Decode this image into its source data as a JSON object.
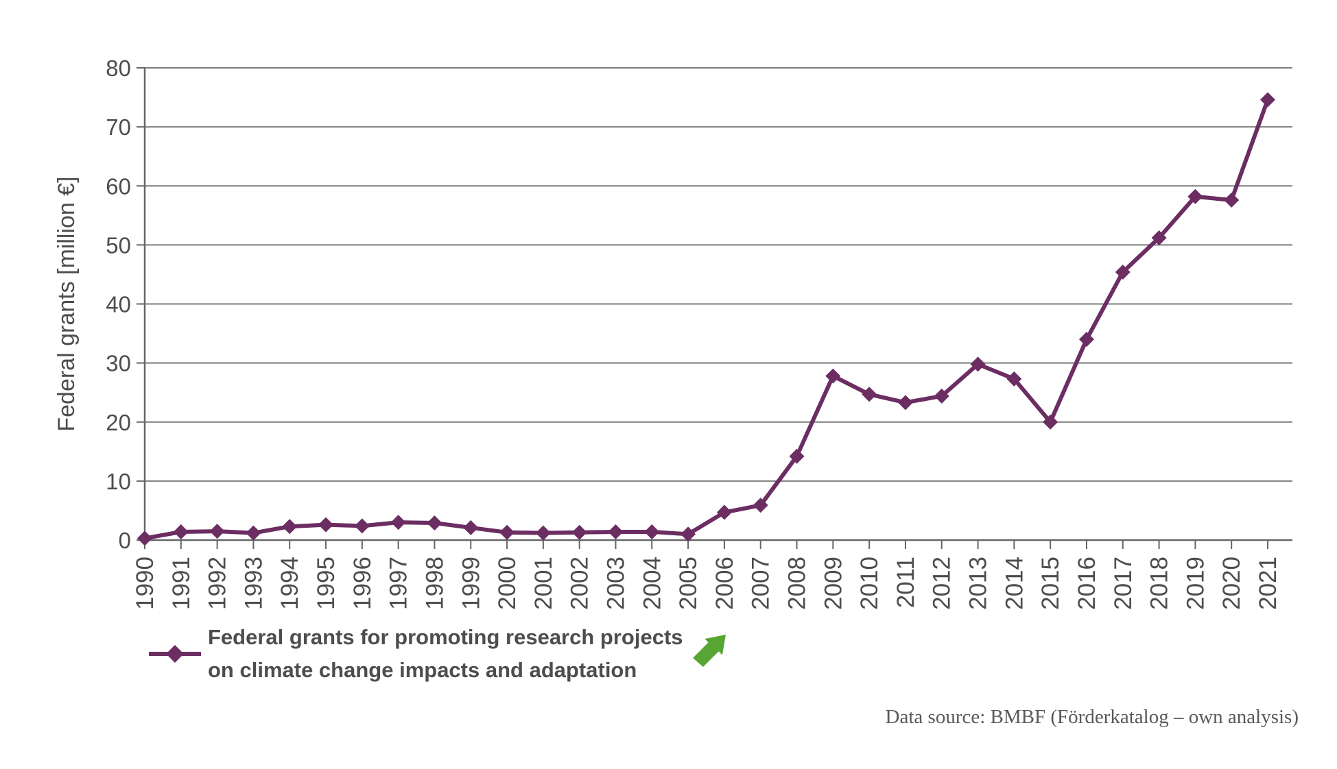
{
  "colors": {
    "series_purple": "#6B2D62",
    "grid_line": "#7c7c7c",
    "axis_line": "#666666",
    "axis_label": "#4d4d4d",
    "arrow_green": "#57A532",
    "source_text": "#595959"
  },
  "legend": {
    "line1": "Federal grants for promoting research projects",
    "line2": "on climate change impacts and adaptation"
  },
  "footer": {
    "data_source": "Data source: BMBF (Förderkatalog – own analysis)"
  },
  "chart_data": {
    "type": "line",
    "title": "",
    "xlabel": "",
    "ylabel": "Federal grants [million €]",
    "ylim": [
      0,
      80
    ],
    "y_ticks": [
      0,
      10,
      20,
      30,
      40,
      50,
      60,
      70,
      80
    ],
    "grid": true,
    "legend_position": "bottom-left",
    "x": [
      "1990",
      "1991",
      "1992",
      "1993",
      "1994",
      "1995",
      "1996",
      "1997",
      "1998",
      "1999",
      "2000",
      "2001",
      "2002",
      "2003",
      "2004",
      "2005",
      "2006",
      "2007",
      "2008",
      "2009",
      "2010",
      "2011",
      "2012",
      "2013",
      "2014",
      "2015",
      "2016",
      "2017",
      "2018",
      "2019",
      "2020",
      "2021"
    ],
    "series": [
      {
        "name": "Federal grants for promoting research projects on climate change impacts and adaptation",
        "marker": "diamond",
        "values": [
          0.3,
          1.4,
          1.5,
          1.2,
          2.3,
          2.6,
          2.4,
          3.0,
          2.9,
          2.1,
          1.3,
          1.2,
          1.3,
          1.4,
          1.4,
          1.0,
          4.7,
          5.9,
          14.2,
          27.8,
          24.7,
          23.3,
          24.4,
          29.8,
          27.3,
          20.0,
          34.0,
          45.4,
          51.2,
          58.2,
          57.6,
          74.6
        ]
      }
    ]
  }
}
